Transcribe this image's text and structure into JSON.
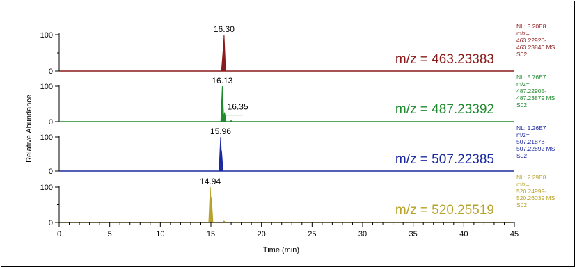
{
  "chart_data": {
    "type": "line",
    "xlabel": "Time (min)",
    "ylabel": "Relative Abundance",
    "xlim": [
      0,
      45
    ],
    "x_ticks": [
      "0",
      "5",
      "10",
      "15",
      "20",
      "25",
      "30",
      "35",
      "40",
      "45"
    ],
    "panels": [
      {
        "mz_label": "m/z = 463.23383",
        "color": "#8b1a1a",
        "nl_lines": [
          "NL: 3.20E8",
          "m/z=",
          "463.22920-",
          "463.23846 MS",
          "S02"
        ],
        "y_ticks": [
          "100",
          "0"
        ],
        "ylim": [
          0,
          100
        ],
        "peaks": [
          {
            "rt": 16.3,
            "height": 100,
            "label": "16.30"
          },
          {
            "rt": 16.2,
            "height": 55,
            "label": ""
          }
        ]
      },
      {
        "mz_label": "m/z = 487.23392",
        "color": "#1f8a2e",
        "nl_lines": [
          "NL: 5.76E7",
          "m/z=",
          "487.22905-",
          "487.23879 MS",
          "S02"
        ],
        "y_ticks": [
          "100",
          "0"
        ],
        "ylim": [
          0,
          100
        ],
        "peaks": [
          {
            "rt": 16.13,
            "height": 100,
            "label": "16.13"
          },
          {
            "rt": 16.35,
            "height": 26,
            "label": "16.35"
          },
          {
            "rt": 17.0,
            "height": 3,
            "label": ""
          }
        ]
      },
      {
        "mz_label": "m/z = 507.22385",
        "color": "#1c2aa0",
        "nl_lines": [
          "NL: 1.26E7",
          "m/z=",
          "507.21878-",
          "507.22892 MS",
          "S02"
        ],
        "y_ticks": [
          "100",
          "0"
        ],
        "ylim": [
          0,
          100
        ],
        "peaks": [
          {
            "rt": 15.96,
            "height": 100,
            "label": "15.96"
          },
          {
            "rt": 16.05,
            "height": 60,
            "label": ""
          }
        ]
      },
      {
        "mz_label": "m/z = 520.25519",
        "color": "#b8a32a",
        "nl_lines": [
          "NL: 2.29E8",
          "m/z=",
          "520.24999-",
          "520.26039 MS",
          "S02"
        ],
        "y_ticks": [
          "100",
          "0"
        ],
        "ylim": [
          0,
          100
        ],
        "peaks": [
          {
            "rt": 14.94,
            "height": 100,
            "label": "14.94"
          },
          {
            "rt": 15.05,
            "height": 70,
            "label": ""
          },
          {
            "rt": 16.3,
            "height": 4,
            "label": ""
          }
        ]
      }
    ]
  }
}
